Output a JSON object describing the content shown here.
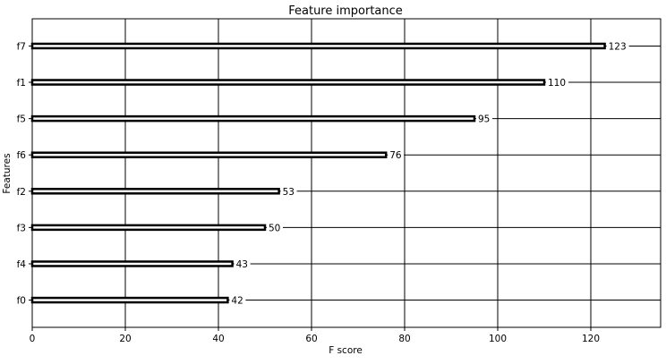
{
  "chart_data": {
    "type": "bar",
    "orientation": "horizontal",
    "title": "Feature importance",
    "xlabel": "F score",
    "ylabel": "Features",
    "categories": [
      "f0",
      "f4",
      "f3",
      "f2",
      "f6",
      "f5",
      "f1",
      "f7"
    ],
    "values": [
      42,
      43,
      50,
      53,
      76,
      95,
      110,
      123
    ],
    "xlim": [
      0,
      135
    ],
    "xticks": [
      0,
      20,
      40,
      60,
      80,
      100,
      120
    ],
    "grid": true,
    "colors": {
      "bar_fill": "#ffffff",
      "bar_edge": "#000000",
      "grid": "#000000"
    }
  }
}
